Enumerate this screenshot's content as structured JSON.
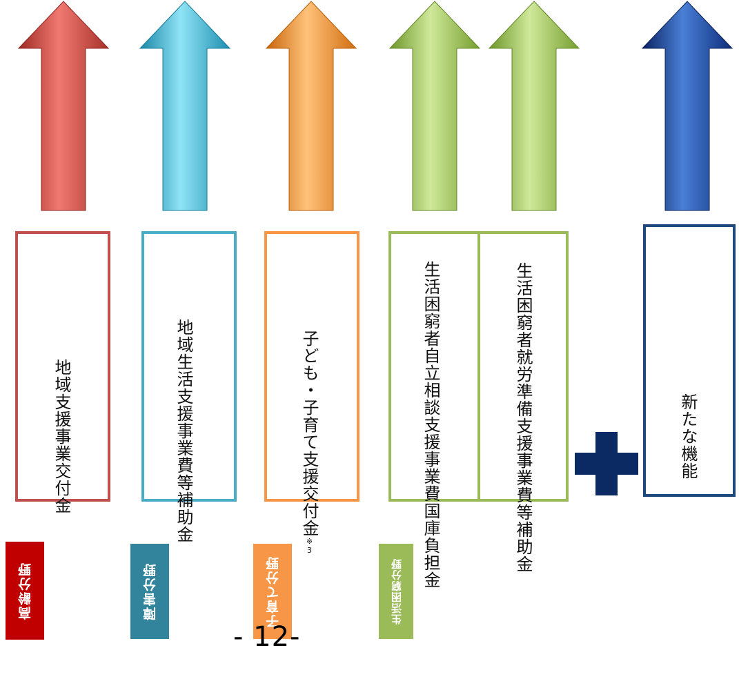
{
  "arrows": [
    {
      "name": "arrow-red",
      "light": "#f07a72",
      "mid": "#d64b43",
      "dark": "#9e2a24"
    },
    {
      "name": "arrow-cyan",
      "light": "#8fe3f5",
      "mid": "#36bedf",
      "dark": "#1a87a7"
    },
    {
      "name": "arrow-orange",
      "light": "#ffc27a",
      "mid": "#f99231",
      "dark": "#c9650a"
    },
    {
      "name": "arrow-green-1",
      "light": "#cfe89a",
      "mid": "#9cc850",
      "dark": "#6e962a"
    },
    {
      "name": "arrow-green-2",
      "light": "#cfe89a",
      "mid": "#9cc850",
      "dark": "#6e962a"
    },
    {
      "name": "arrow-navy",
      "light": "#4a7fd6",
      "mid": "#1543a6",
      "dark": "#0b2362"
    }
  ],
  "columns": {
    "elderly": {
      "category": "高齢分野",
      "subsidy": "地域支援事業交付金",
      "border": "#c0504d",
      "tag_color": "#c00000"
    },
    "disability": {
      "category": "障害分野",
      "subsidy": "地域生活支援事業費等補助金",
      "border": "#4bacc6",
      "tag_color": "#31849b"
    },
    "childcare": {
      "category": "子育て分野",
      "subsidy": "子ども・子育て支援交付金",
      "note": "※3",
      "border": "#f79646",
      "tag_color": "#f79646"
    },
    "poverty": {
      "category": "生活困窮分野",
      "subsidy_1": "生活困窮者自立相談支援事業費国庫負担金",
      "subsidy_2": "生活困窮者就労準備支援事業費等補助金",
      "border": "#9bbb59",
      "tag_color": "#9bbb59"
    },
    "new": {
      "label": "新たな機能",
      "border": "#1f497d"
    }
  },
  "plus_color": "#0b2a63",
  "page_number": "- 12-"
}
